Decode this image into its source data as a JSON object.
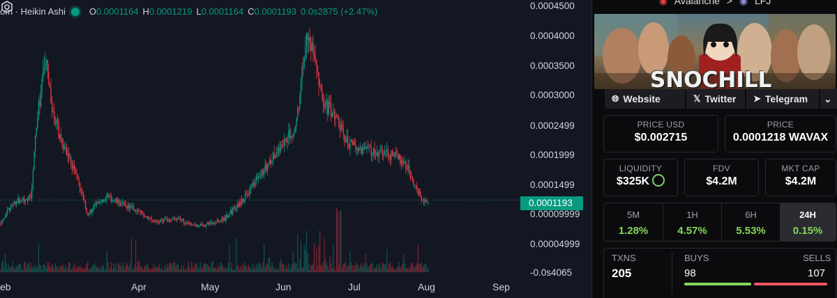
{
  "chart": {
    "legend": {
      "symbol": "om · Heikin Ashi",
      "o_key": "O",
      "o_val": "0.0001164",
      "h_key": "H",
      "h_val": "0.0001219",
      "l_key": "L",
      "l_val": "0.0001164",
      "c_key": "C",
      "c_val": "0.0001193",
      "change": "0.0s2875 (+2.47%)"
    },
    "price_labels": [
      "0.0004500",
      "0.0004000",
      "0.0003500",
      "0.0003000",
      "0.0002499",
      "0.0001999",
      "0.0001499",
      "0.00009999",
      "0.00004999",
      "-0.0s4065"
    ],
    "current_price": "0.0001193",
    "time_labels": [
      "eb",
      "Apr",
      "May",
      "Jun",
      "Jul",
      "Aug",
      "Sep"
    ],
    "up_color": "#089981",
    "down_color": "#f23645"
  },
  "chart_data": {
    "type": "candlestick",
    "y_axis": [
      -4.07e-06,
      0.00045
    ],
    "current": 0.0001193,
    "x": [
      "Feb",
      "Apr",
      "May",
      "Jun",
      "Jul",
      "Aug",
      "Sep"
    ],
    "path": [
      [
        0,
        8e-05
      ],
      [
        20,
        0.000115
      ],
      [
        45,
        0.000125
      ],
      [
        52,
        0.00025
      ],
      [
        65,
        0.00036
      ],
      [
        75,
        0.00027
      ],
      [
        85,
        0.00023
      ],
      [
        110,
        0.00016
      ],
      [
        125,
        9.5e-05
      ],
      [
        150,
        0.000125
      ],
      [
        190,
        0.000105
      ],
      [
        225,
        8.2e-05
      ],
      [
        250,
        8.8e-05
      ],
      [
        285,
        7.5e-05
      ],
      [
        320,
        8.5e-05
      ],
      [
        345,
        0.000115
      ],
      [
        375,
        0.000165
      ],
      [
        405,
        0.000215
      ],
      [
        425,
        0.00025
      ],
      [
        440,
        0.00041
      ],
      [
        450,
        0.00036
      ],
      [
        465,
        0.000285
      ],
      [
        485,
        0.000255
      ],
      [
        495,
        0.00022
      ],
      [
        510,
        0.00021
      ],
      [
        540,
        0.0002
      ],
      [
        565,
        0.000195
      ],
      [
        580,
        0.000185
      ],
      [
        595,
        0.000145
      ],
      [
        605,
        0.00012
      ],
      [
        615,
        0.000119
      ]
    ]
  },
  "panel": {
    "chain": "Avalanche",
    "arrow": ">",
    "dex": "LFJ",
    "banner_title": "SNOCHILL",
    "links": {
      "website": "Website",
      "twitter": "Twitter",
      "telegram": "Telegram"
    },
    "price_usd_label": "PRICE USD",
    "price_usd": "$0.002715",
    "price_label": "PRICE",
    "price_native": "0.0001218 WAVAX",
    "liquidity_label": "LIQUIDITY",
    "liquidity": "$325K",
    "fdv_label": "FDV",
    "fdv": "$4.2M",
    "mcap_label": "MKT CAP",
    "mcap": "$4.2M",
    "timeframes": [
      {
        "label": "5M",
        "value": "1.28%"
      },
      {
        "label": "1H",
        "value": "4.57%"
      },
      {
        "label": "6H",
        "value": "5.53%"
      },
      {
        "label": "24H",
        "value": "0.15%"
      }
    ],
    "txns_label": "TXNS",
    "txns": "205",
    "buys_label": "BUYS",
    "buys": "98",
    "sells_label": "SELLS",
    "sells": "107",
    "buy_color": "#86d65b",
    "sell_color": "#f0565f"
  }
}
